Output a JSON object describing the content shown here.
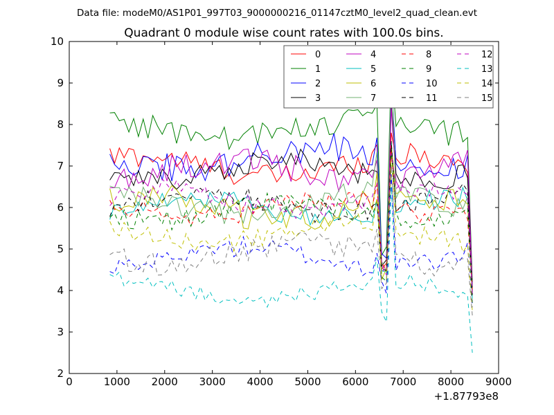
{
  "figure": {
    "suptitle": "Data file: modeM0/AS1P01_997T03_9000000216_01147cztM0_level2_quad_clean.evt",
    "x_offset_label": "+1.87793e8"
  },
  "chart_data": {
    "type": "line",
    "title": "Quadrant 0 module wise count rates with 100.0s bins.",
    "xlabel": "",
    "ylabel": "",
    "xlim": [
      0,
      9000
    ],
    "ylim": [
      2,
      10
    ],
    "x_ticks": [
      "0",
      "1000",
      "2000",
      "3000",
      "4000",
      "5000",
      "6000",
      "7000",
      "8000",
      "9000"
    ],
    "y_ticks": [
      "2",
      "3",
      "4",
      "5",
      "6",
      "7",
      "8",
      "9",
      "10"
    ],
    "x_start": 850,
    "x_step": 100,
    "x_end": 8450,
    "series": [
      {
        "name": "0",
        "color": "#ff0000",
        "style": "solid",
        "base": 7.0,
        "amp": 0.3,
        "end": 3.9,
        "spike": 7.8,
        "dip": 4.6
      },
      {
        "name": "1",
        "color": "#008000",
        "style": "solid",
        "base": 7.9,
        "amp": 0.35,
        "end": 4.2,
        "spike": 9.5,
        "dip": 5.0
      },
      {
        "name": "2",
        "color": "#0000ff",
        "style": "solid",
        "base": 7.2,
        "amp": 0.35,
        "end": 4.0,
        "spike": 9.1,
        "dip": 4.8
      },
      {
        "name": "3",
        "color": "#000000",
        "style": "solid",
        "base": 6.9,
        "amp": 0.3,
        "end": 4.1,
        "spike": 8.5,
        "dip": 4.7
      },
      {
        "name": "4",
        "color": "#bf00bf",
        "style": "solid",
        "base": 6.9,
        "amp": 0.35,
        "end": 4.0,
        "spike": 8.4,
        "dip": 4.5
      },
      {
        "name": "5",
        "color": "#00bfbf",
        "style": "solid",
        "base": 6.0,
        "amp": 0.25,
        "end": 3.8,
        "spike": 7.6,
        "dip": 4.3
      },
      {
        "name": "6",
        "color": "#bfbf00",
        "style": "solid",
        "base": 6.0,
        "amp": 0.35,
        "end": 3.9,
        "spike": 7.5,
        "dip": 4.4
      },
      {
        "name": "7",
        "color": "#70b070",
        "style": "solid",
        "base": 6.1,
        "amp": 0.3,
        "end": 4.0,
        "spike": 9.5,
        "dip": 4.6
      },
      {
        "name": "8",
        "color": "#ff0000",
        "style": "dashed",
        "base": 6.0,
        "amp": 0.25,
        "end": 4.0,
        "spike": 7.5,
        "dip": 4.5
      },
      {
        "name": "9",
        "color": "#008000",
        "style": "dashed",
        "base": 5.9,
        "amp": 0.25,
        "end": 3.7,
        "spike": 7.4,
        "dip": 4.4
      },
      {
        "name": "10",
        "color": "#0000ff",
        "style": "dashed",
        "base": 4.8,
        "amp": 0.25,
        "end": 3.6,
        "spike": 6.8,
        "dip": 4.1
      },
      {
        "name": "11",
        "color": "#000000",
        "style": "dashed",
        "base": 6.1,
        "amp": 0.25,
        "end": 3.9,
        "spike": 7.6,
        "dip": 4.4
      },
      {
        "name": "12",
        "color": "#bf00bf",
        "style": "dashed",
        "base": 6.2,
        "amp": 0.25,
        "end": 3.9,
        "spike": 7.3,
        "dip": 4.5
      },
      {
        "name": "13",
        "color": "#00bfbf",
        "style": "dashed",
        "base": 4.0,
        "amp": 0.2,
        "end": 2.5,
        "spike": 6.5,
        "dip": 3.3
      },
      {
        "name": "14",
        "color": "#bfbf00",
        "style": "dashed",
        "base": 5.4,
        "amp": 0.25,
        "end": 3.5,
        "spike": 7.2,
        "dip": 4.2
      },
      {
        "name": "15",
        "color": "#808080",
        "style": "dashed",
        "base": 4.9,
        "amp": 0.3,
        "end": 3.4,
        "spike": 7.0,
        "dip": 4.2
      }
    ],
    "legend_position": "top-right",
    "legend_columns": 4
  }
}
